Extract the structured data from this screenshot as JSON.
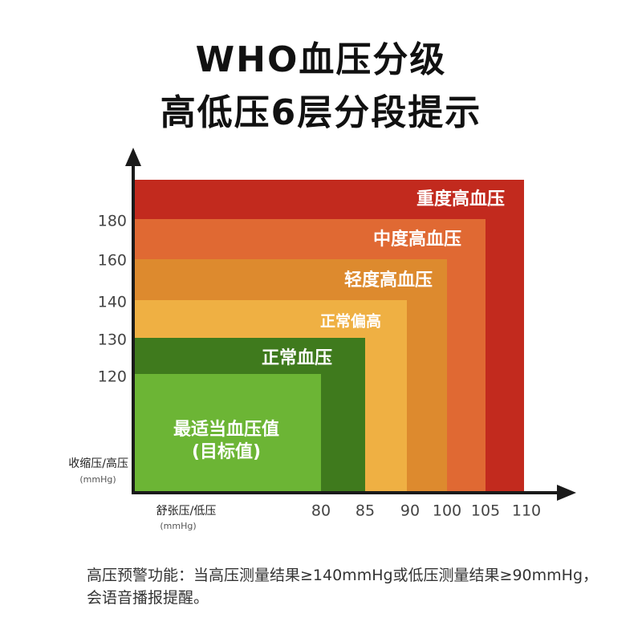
{
  "title_line1": "WHO血压分级",
  "title_line2": "高低压6层分段提示",
  "chart_data": {
    "type": "nested-rectangles",
    "y_axis": {
      "label": "收缩压/高压",
      "unit": "(mmHg)",
      "ticks": [
        "180",
        "160",
        "140",
        "130",
        "120"
      ]
    },
    "x_axis": {
      "label": "舒张压/低压",
      "unit": "(mmHg)",
      "ticks": [
        "80",
        "85",
        "90",
        "100",
        "105",
        "110"
      ]
    },
    "zones": [
      {
        "label": "重度高血压",
        "systolic_max": "",
        "diastolic_max": "110",
        "color": "#c22a1e"
      },
      {
        "label": "中度高血压",
        "systolic_max": "180",
        "diastolic_max": "105",
        "color": "#e06933"
      },
      {
        "label": "轻度高血压",
        "systolic_max": "160",
        "diastolic_max": "100",
        "color": "#dd8a2e"
      },
      {
        "label": "正常偏高",
        "systolic_max": "140",
        "diastolic_max": "90",
        "color": "#efb043"
      },
      {
        "label": "正常血压",
        "systolic_max": "130",
        "diastolic_max": "85",
        "color": "#3f7a1d"
      },
      {
        "label": "最适当血压值\n(目标值)",
        "systolic_max": "120",
        "diastolic_max": "80",
        "color": "#6cb535"
      }
    ]
  },
  "footnote": "高压预警功能：当高压测量结果≥140mmHg或低压测量结果≥90mmHg，会语音播报提醒。"
}
